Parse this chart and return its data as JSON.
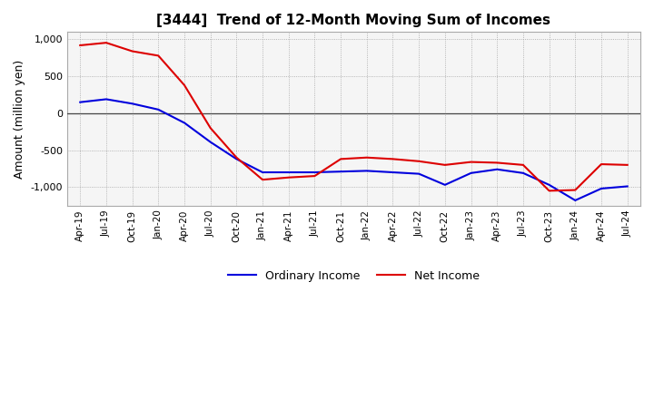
{
  "title": "[3444]  Trend of 12-Month Moving Sum of Incomes",
  "ylabel": "Amount (million yen)",
  "ylim": [
    -1250,
    1100
  ],
  "yticks": [
    -1000,
    -500,
    0,
    500,
    1000
  ],
  "background_color": "#ffffff",
  "plot_bg_color": "#f5f5f5",
  "grid_color": "#999999",
  "ordinary_income_color": "#0000dd",
  "net_income_color": "#dd0000",
  "x_labels": [
    "Apr-19",
    "Jul-19",
    "Oct-19",
    "Jan-20",
    "Apr-20",
    "Jul-20",
    "Oct-20",
    "Jan-21",
    "Apr-21",
    "Jul-21",
    "Oct-21",
    "Jan-22",
    "Apr-22",
    "Jul-22",
    "Oct-22",
    "Jan-23",
    "Apr-23",
    "Jul-23",
    "Oct-23",
    "Jan-24",
    "Apr-24",
    "Jul-24"
  ],
  "ordinary_income": [
    150,
    190,
    130,
    50,
    -130,
    -390,
    -620,
    -800,
    -800,
    -800,
    -790,
    -780,
    -800,
    -820,
    -970,
    -810,
    -760,
    -810,
    -970,
    -1180,
    -1020,
    -990
  ],
  "net_income": [
    920,
    955,
    840,
    780,
    380,
    -200,
    -600,
    -900,
    -870,
    -850,
    -620,
    -600,
    -620,
    -650,
    -700,
    -660,
    -670,
    -700,
    -1050,
    -1040,
    -690,
    -700
  ]
}
